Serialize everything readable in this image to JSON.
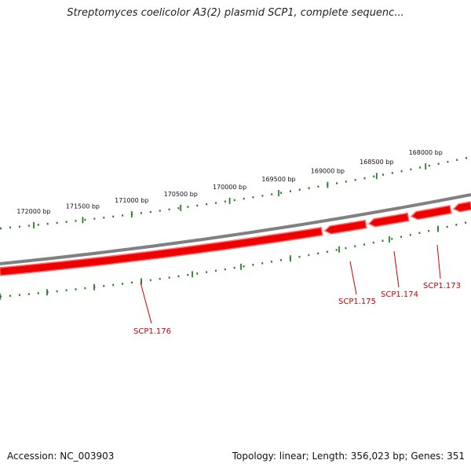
{
  "title": "Streptomyces coelicolor A3(2) plasmid SCP1, complete sequenc...",
  "footer": {
    "accession": "Accession: NC_003903",
    "summary": "Topology: linear; Length: 356,023 bp; Genes: 351"
  },
  "colors": {
    "gene_fill": "#ee0000",
    "gene_shade": "#ff6a6a",
    "backbone": "#808080",
    "tick": "#2e7d2e",
    "tick_label": "#111111",
    "gene_label": "#cc0000"
  },
  "ruler_labels": [
    {
      "bp": 172000,
      "label": "172000 bp"
    },
    {
      "bp": 171500,
      "label": "171500 bp"
    },
    {
      "bp": 171000,
      "label": "171000 bp"
    },
    {
      "bp": 170500,
      "label": "170500 bp"
    },
    {
      "bp": 170000,
      "label": "170000 bp"
    },
    {
      "bp": 169500,
      "label": "169500 bp"
    },
    {
      "bp": 169000,
      "label": "169000 bp"
    },
    {
      "bp": 168500,
      "label": "168500 bp"
    },
    {
      "bp": 168000,
      "label": "168000 bp"
    }
  ],
  "genes": [
    {
      "name": "SCP1.176",
      "strand": "-"
    },
    {
      "name": "SCP1.175",
      "strand": "-"
    },
    {
      "name": "SCP1.174",
      "strand": "-"
    },
    {
      "name": "SCP1.173",
      "strand": "-"
    }
  ]
}
